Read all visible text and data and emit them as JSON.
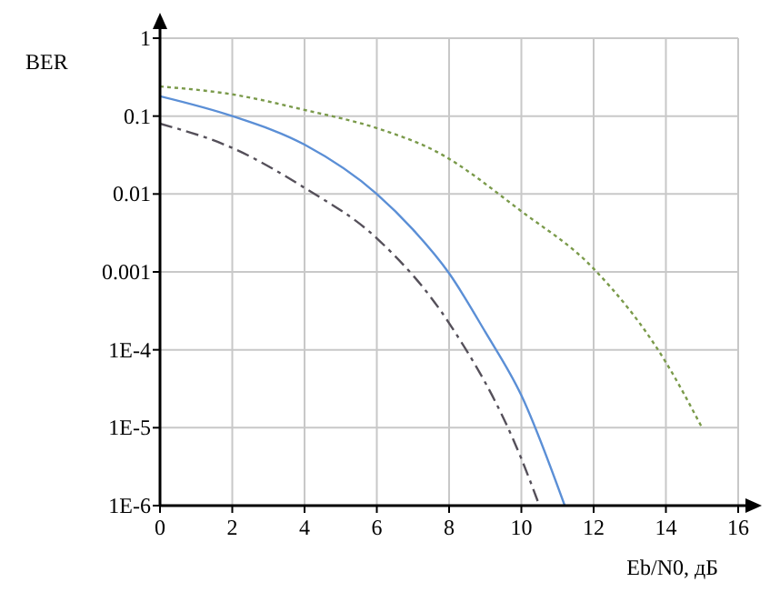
{
  "chart_data": {
    "type": "line",
    "xlabel": "Eb/N0, дБ",
    "ylabel": "BER",
    "log": "y",
    "xlim": [
      0,
      16
    ],
    "xticks": [
      0,
      2,
      4,
      6,
      8,
      10,
      12,
      14,
      16
    ],
    "ylim": [
      1e-06,
      1
    ],
    "yticks": [
      {
        "value": 1e-06,
        "label": "1E-6"
      },
      {
        "value": 1e-05,
        "label": "1E-5"
      },
      {
        "value": 0.0001,
        "label": "1E-4"
      },
      0.001,
      0.01,
      0.1,
      1
    ],
    "grid": true,
    "marker": "none",
    "series": [
      {
        "color": "#5b8fd6",
        "line_style": "solid",
        "x": [
          0,
          2,
          4,
          6,
          7,
          8,
          9,
          10,
          11.2
        ],
        "values": [
          0.18,
          0.1,
          0.043,
          0.01,
          0.0035,
          0.00096,
          0.00017,
          2.6e-05,
          1e-06
        ]
      },
      {
        "color": "#55505a",
        "line_style": "dashdot",
        "x": [
          0,
          2,
          4,
          6,
          8,
          10,
          10.5
        ],
        "values": [
          0.08,
          0.039,
          0.012,
          0.0027,
          0.00022,
          4e-06,
          1e-06
        ]
      },
      {
        "color": "#7a9a4a",
        "line_style": "dotted",
        "x": [
          0,
          2,
          4,
          6,
          7.6,
          10,
          12,
          14,
          15
        ],
        "values": [
          0.24,
          0.19,
          0.12,
          0.07,
          0.036,
          0.006,
          0.0011,
          6.9e-05,
          1e-05
        ]
      }
    ]
  }
}
